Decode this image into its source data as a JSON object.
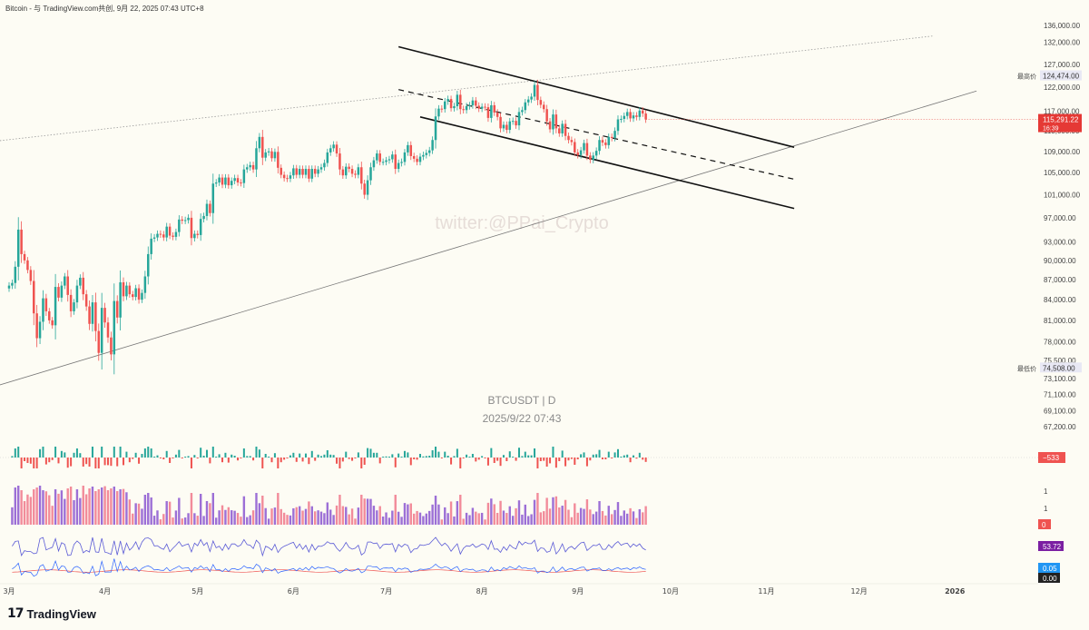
{
  "header": {
    "title": "Bitcoin - 与 TradingView.com共创,  9月 22, 2025 07:43 UTC+8"
  },
  "watermark": "twitter:@PPai_Crypto",
  "symbol_label": "BTCUSDT | D",
  "date_label": "2025/9/22 07:43",
  "brand": {
    "logo": "17",
    "name": "TradingView"
  },
  "colors": {
    "bull": "#26a69a",
    "bear": "#ef5350",
    "price_badge": "#e53935",
    "high_badge": "#e8e8f4",
    "volume_up": "#9c6fd6",
    "volume_down": "#f28b9a",
    "rsi_line": "#5b5bd6",
    "macd_line": "#2962ff",
    "signal_line": "#ef5350",
    "purple_badge": "#7b1fa2",
    "blue_badge": "#2196f3",
    "black_badge": "#222222",
    "background": "#fdfcf4"
  },
  "price_axis": {
    "ticks": [
      "136,000.00",
      "132,000.00",
      "127,000.00",
      "122,000.00",
      "117,000.00",
      "113,000.00",
      "109,000.00",
      "105,000.00",
      "101,000.00",
      "97,000.00",
      "93,000.00",
      "90,000.00",
      "87,000.00",
      "84,000.00",
      "81,000.00",
      "78,000.00",
      "75,500.00",
      "73,100.00",
      "71,100.00",
      "69,100.00",
      "67,200.00"
    ],
    "high_label": "最高价",
    "high_value": "124,474.00",
    "low_label": "最低价",
    "low_value": "74,508.00",
    "last_price": "115,291.22",
    "countdown": "16:39"
  },
  "indicators": {
    "osc_value": "−533",
    "vol_values": [
      "1",
      "1"
    ],
    "vol_badge": "0",
    "rsi_value": "53.72",
    "macd_value": "0.05",
    "macd_signal": "0.00"
  },
  "time_axis": [
    "3月",
    "4月",
    "5月",
    "6月",
    "7月",
    "8月",
    "9月",
    "10月",
    "11月",
    "12月",
    "2026"
  ],
  "chart_data": {
    "type": "candlestick",
    "symbol": "BTCUSDT",
    "interval": "D",
    "ylim": [
      67200,
      136000
    ],
    "y_scale": "log",
    "x_range": [
      "2025-03-01",
      "2026-01-08"
    ],
    "date_start": "2025-03-01",
    "closes": [
      86100,
      86500,
      89000,
      95000,
      91000,
      90000,
      88500,
      86800,
      82000,
      78500,
      80800,
      84200,
      82300,
      81000,
      80300,
      85900,
      84300,
      86100,
      87500,
      84700,
      82300,
      83600,
      86100,
      87300,
      84800,
      83000,
      80500,
      83600,
      79500,
      76500,
      82800,
      80700,
      78600,
      76300,
      83800,
      81400,
      86600,
      84500,
      86100,
      84800,
      84400,
      85700,
      84000,
      85000,
      87500,
      91000,
      93500,
      93700,
      94300,
      94200,
      93700,
      95500,
      94000,
      93800,
      94600,
      96700,
      96500,
      96600,
      97000,
      93600,
      94300,
      94100,
      96800,
      97300,
      99400,
      97800,
      103000,
      103200,
      104100,
      102800,
      104100,
      102700,
      103500,
      104000,
      103200,
      103100,
      105600,
      106000,
      106400,
      105600,
      109600,
      111800,
      107800,
      108800,
      109000,
      107700,
      108900,
      105900,
      104600,
      104000,
      103900,
      104500,
      105800,
      104600,
      105700,
      104600,
      105700,
      103900,
      105700,
      104800,
      105600,
      106000,
      106800,
      108800,
      109600,
      110300,
      108600,
      105600,
      104500,
      106100,
      105700,
      104800,
      104600,
      106000,
      103000,
      101000,
      103600,
      106000,
      107300,
      108600,
      107000,
      107000,
      107300,
      107500,
      108400,
      105700,
      106800,
      107000,
      108800,
      110200,
      108100,
      107600,
      107000,
      108000,
      108300,
      108700,
      109200,
      111200,
      115900,
      117500,
      117400,
      119000,
      119500,
      117600,
      118000,
      120400,
      117400,
      117200,
      118000,
      118200,
      119200,
      118100,
      117500,
      117900,
      117800,
      115600,
      118200,
      116700,
      115800,
      113500,
      114200,
      113200,
      114900,
      115000,
      114100,
      116800,
      117200,
      118800,
      119400,
      120000,
      122500,
      119300,
      118300,
      117400,
      114900,
      113300,
      116300,
      113500,
      112500,
      114400,
      112000,
      111200,
      110800,
      108800,
      108300,
      109200,
      110600,
      108200,
      107400,
      108200,
      109100,
      111200,
      110700,
      110200,
      111800,
      111600,
      113000,
      115300,
      115400,
      116000,
      116800,
      115500,
      116100,
      115800,
      117100,
      116500,
      115291
    ],
    "ma_note": "",
    "channel": {
      "upper": [
        [
          "2025-07-05",
          131000
        ],
        [
          "2025-11-10",
          109800
        ]
      ],
      "mid": [
        [
          "2025-07-05",
          121500
        ],
        [
          "2025-11-10",
          103800
        ]
      ],
      "lower": [
        [
          "2025-07-12",
          115800
        ],
        [
          "2025-11-10",
          98600
        ]
      ]
    },
    "long_trendline": [
      [
        "2025-02-25",
        72200
      ],
      [
        "2026-01-08",
        121200
      ]
    ],
    "dotted_trendline": [
      [
        "2025-02-25",
        111000
      ],
      [
        "2025-12-25",
        133500
      ]
    ]
  }
}
